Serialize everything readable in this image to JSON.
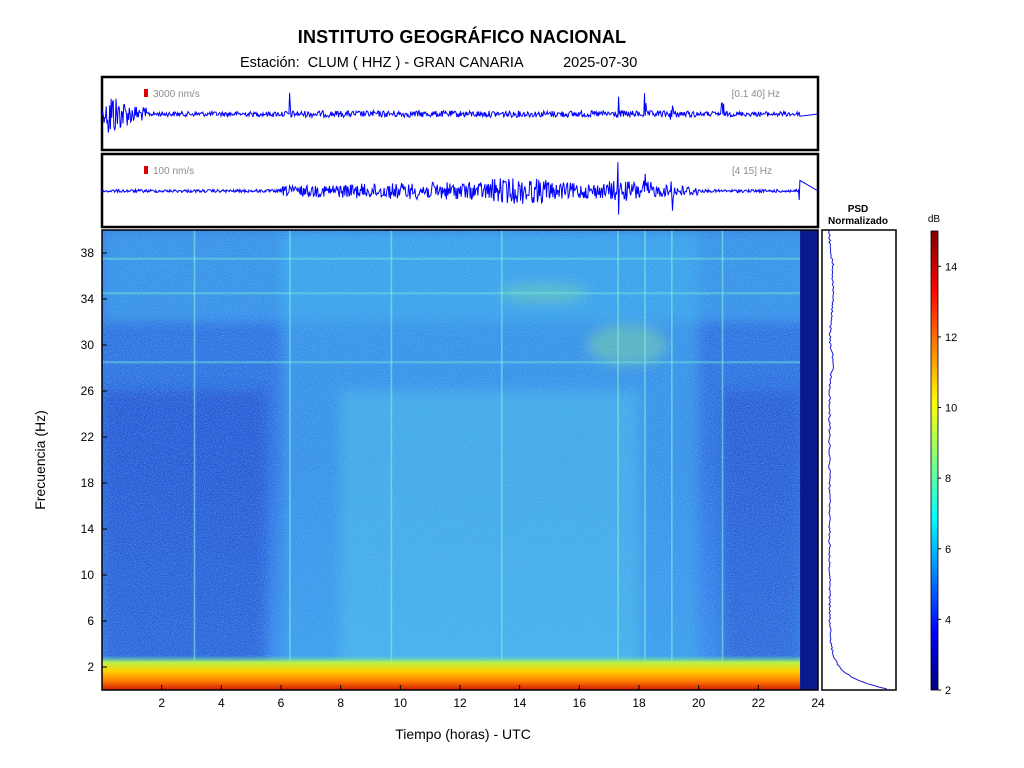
{
  "header": {
    "title": "INSTITUTO GEOGRÁFICO NACIONAL",
    "station_label": "Estación:",
    "station": "CLUM ( HHZ ) - GRAN CANARIA",
    "date": "2025-07-30"
  },
  "colors": {
    "waveform": "#0000ff",
    "scale_marker": "#e00000",
    "psd_line": "#1c1ccc",
    "spectrogram_background": "#2a67d9",
    "spectrogram_low_band": "#f5a200"
  },
  "chart_data": [
    {
      "type": "line",
      "name": "waveform-broadband",
      "scale_label": "3000 nm/s",
      "band_label": "[0.1 40] Hz",
      "xlim": [
        0,
        24
      ],
      "data_end_hour": 23.4,
      "events_hours": [
        0.5,
        6.3,
        17.3,
        18.2,
        19.1,
        20.8
      ]
    },
    {
      "type": "line",
      "name": "waveform-filtered",
      "scale_label": "100 nm/s",
      "band_label": "[4 15] Hz",
      "xlim": [
        0,
        24
      ],
      "data_end_hour": 23.4,
      "events_hours": [
        6.3,
        17.3,
        18.2,
        19.1,
        23.4
      ]
    },
    {
      "type": "heatmap",
      "name": "spectrogram",
      "xlabel": "Tiempo (horas) - UTC",
      "ylabel": "Frecuencia  (Hz)",
      "xlim": [
        0,
        24
      ],
      "ylim": [
        0,
        40
      ],
      "x_ticks": [
        2,
        4,
        6,
        8,
        10,
        12,
        14,
        16,
        18,
        20,
        22,
        24
      ],
      "y_ticks": [
        2,
        6,
        10,
        14,
        18,
        22,
        26,
        30,
        34,
        38
      ],
      "data_end_hour": 23.4,
      "active_period_hours": [
        6,
        20
      ],
      "bright_bands_hz": [
        1,
        28.5,
        34.5,
        37.5
      ]
    },
    {
      "type": "line",
      "name": "psd",
      "title_line1": "PSD",
      "title_line2": "Normalizado",
      "ylim": [
        0,
        40
      ],
      "peaks_hz": [
        0.5,
        2,
        28.5,
        34.5,
        37
      ]
    },
    {
      "type": "colorbar",
      "name": "colorbar",
      "unit": "dB",
      "range": [
        2,
        15
      ],
      "ticks": [
        2,
        4,
        6,
        8,
        10,
        12,
        14
      ],
      "colormap": "jet"
    }
  ]
}
